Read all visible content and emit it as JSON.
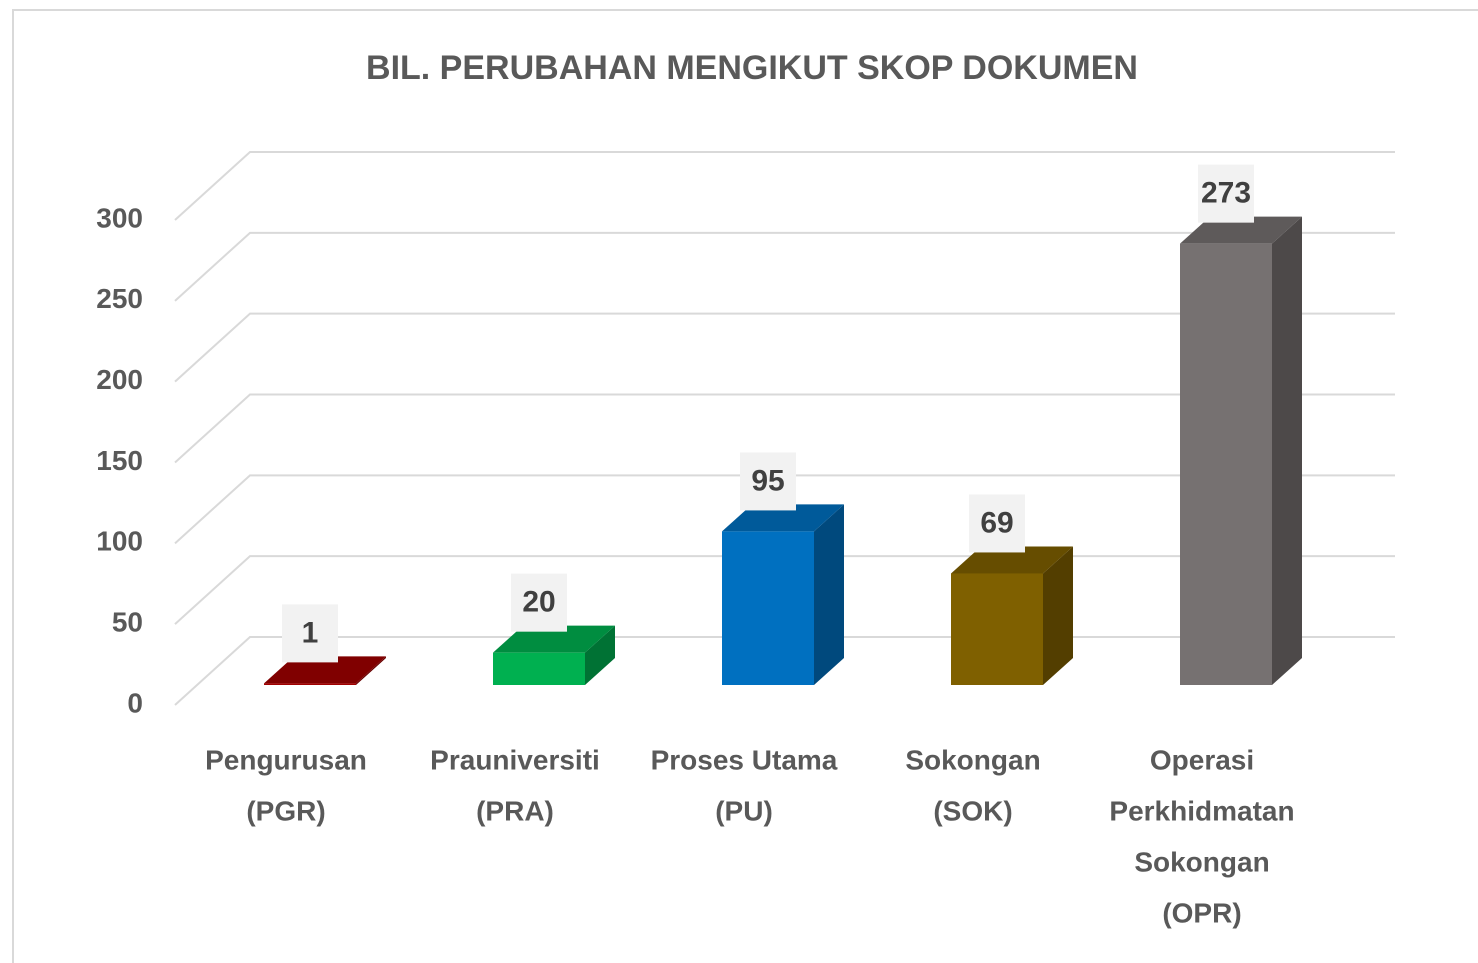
{
  "chart_data": {
    "type": "bar3d",
    "title": "BIL. PERUBAHAN MENGIKUT SKOP DOKUMEN",
    "categories": [
      [
        "Pengurusan",
        "(PGR)"
      ],
      [
        "Prauniversiti",
        "(PRA)"
      ],
      [
        "Proses Utama",
        "(PU)"
      ],
      [
        "Sokongan",
        "(SOK)"
      ],
      [
        "Operasi",
        "Perkhidmatan",
        "Sokongan",
        "(OPR)"
      ]
    ],
    "values": [
      1,
      20,
      95,
      69,
      273
    ],
    "colors": [
      "#a00000",
      "#00b050",
      "#0070c0",
      "#7f6000",
      "#767171"
    ],
    "ylim": [
      0,
      300
    ],
    "yticks": [
      0,
      50,
      100,
      150,
      200,
      250,
      300
    ],
    "grid": true
  }
}
